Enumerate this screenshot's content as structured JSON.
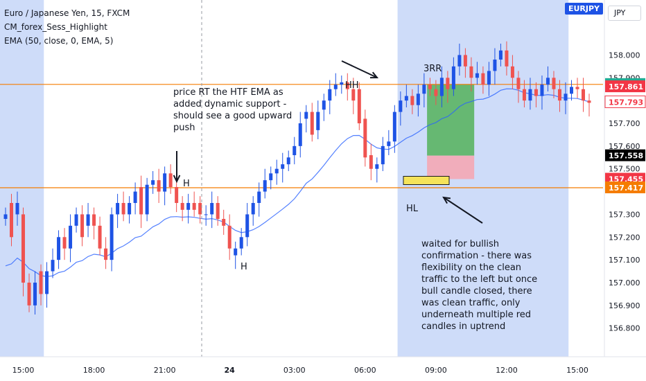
{
  "header": {
    "symbol_line": "Euro / Japanese Yen, 15, FXCM",
    "indicator_1": "CM_forex_Sess_Highlight",
    "indicator_2": "EMA (50, close, 0, EMA, 5)",
    "symbol_badge": "EURJPY",
    "currency": "JPY"
  },
  "annotations": {
    "note_1": "price RT the HTF EMA as\nadded dynamic support -\nshould see a good upward\npush",
    "note_2": "waited for bullish\nconfirmation - there was\nflexibility on the clean\ntraffic to the left but once\nbull candle closed, there\nwas clean traffic, only\nunderneath multiple red\ncandles in uptrend",
    "label_h1": "H",
    "label_h2": "H",
    "label_hh": "HH",
    "label_hl": "HL",
    "label_3rr": "3RR"
  },
  "chart_data": {
    "type": "candlestick",
    "symbol": "EURJPY",
    "timeframe": "15",
    "y_axis": {
      "range": [
        156.72,
        158.12
      ],
      "ticks": [
        158.0,
        157.9,
        157.7,
        157.6,
        157.5,
        157.3,
        157.2,
        157.1,
        157.0,
        156.9,
        156.8
      ],
      "tick_labels": [
        "158.000",
        "157.900",
        "157.700",
        "157.600",
        "157.500",
        "157.300",
        "157.200",
        "157.100",
        "157.000",
        "156.900",
        "156.800"
      ]
    },
    "x_axis": {
      "tick_labels": [
        "15:00",
        "18:00",
        "21:00",
        "24",
        "03:00",
        "06:00",
        "09:00",
        "12:00",
        "15:00"
      ],
      "tick_index": [
        3,
        15,
        27,
        38,
        49,
        61,
        73,
        85,
        97
      ]
    },
    "price_labels": [
      {
        "price": 157.871,
        "text": "157.871",
        "color": "#22ab94"
      },
      {
        "price": 157.861,
        "text": "157.861",
        "color": "#f23645"
      },
      {
        "price": 157.793,
        "text": "157.793",
        "color": "#ffffff",
        "text_color": "#f23645"
      },
      {
        "price": 157.558,
        "text": "157.558",
        "color": "#000000"
      },
      {
        "price": 157.455,
        "text": "157.455",
        "color": "#f23645"
      },
      {
        "price": 157.417,
        "text": "157.417",
        "color": "#f57c00"
      }
    ],
    "horizontal_lines": [
      {
        "price": 157.871,
        "color": "#f57c00"
      },
      {
        "price": 157.417,
        "color": "#f57c00"
      }
    ],
    "sessions": [
      [
        -1,
        6
      ],
      [
        67,
        95
      ]
    ],
    "position": {
      "start_index": 72,
      "end_index": 79,
      "entry": 157.558,
      "target": 157.871,
      "stop": 157.455
    },
    "candles_close": [
      157.3,
      157.2,
      157.35,
      157.0,
      156.9,
      157.0,
      156.95,
      157.05,
      157.1,
      157.2,
      157.15,
      157.25,
      157.3,
      157.2,
      157.3,
      157.25,
      157.15,
      157.1,
      157.3,
      157.35,
      157.3,
      157.35,
      157.4,
      157.3,
      157.43,
      157.45,
      157.4,
      157.48,
      157.42,
      157.35,
      157.32,
      157.35,
      157.32,
      157.3,
      157.3,
      157.35,
      157.28,
      157.25,
      157.15,
      157.15,
      157.2,
      157.3,
      157.35,
      157.4,
      157.45,
      157.48,
      157.5,
      157.52,
      157.55,
      157.6,
      157.7,
      157.75,
      157.65,
      157.75,
      157.8,
      157.85,
      157.87,
      157.88,
      157.85,
      157.8,
      157.7,
      157.55,
      157.5,
      157.52,
      157.6,
      157.62,
      157.75,
      157.8,
      157.82,
      157.78,
      157.83,
      157.87,
      157.85,
      157.82,
      157.9,
      157.85,
      157.95,
      158.0,
      157.95,
      157.9,
      157.92,
      157.87,
      157.93,
      157.98,
      158.02,
      157.95,
      157.9,
      157.85,
      157.8,
      157.85,
      157.82,
      157.87,
      157.9,
      157.85,
      157.8,
      157.83,
      157.86,
      157.85,
      157.8,
      157.79
    ],
    "candles_open": [
      157.28,
      157.35,
      157.3,
      157.3,
      157.0,
      156.9,
      157.05,
      156.95,
      157.05,
      157.1,
      157.2,
      157.15,
      157.25,
      157.3,
      157.25,
      157.3,
      157.25,
      157.15,
      157.1,
      157.3,
      157.35,
      157.3,
      157.35,
      157.42,
      157.3,
      157.43,
      157.45,
      157.4,
      157.48,
      157.42,
      157.35,
      157.32,
      157.35,
      157.35,
      157.3,
      157.3,
      157.35,
      157.28,
      157.25,
      157.12,
      157.15,
      157.2,
      157.3,
      157.35,
      157.4,
      157.45,
      157.48,
      157.5,
      157.52,
      157.56,
      157.6,
      157.72,
      157.75,
      157.67,
      157.76,
      157.8,
      157.85,
      157.87,
      157.88,
      157.85,
      157.85,
      157.72,
      157.56,
      157.5,
      157.52,
      157.6,
      157.62,
      157.75,
      157.8,
      157.82,
      157.78,
      157.83,
      157.87,
      157.85,
      157.82,
      157.9,
      157.85,
      157.95,
      158.0,
      157.95,
      157.9,
      157.92,
      157.87,
      157.93,
      157.98,
      158.02,
      157.95,
      157.9,
      157.85,
      157.8,
      157.85,
      157.82,
      157.87,
      157.9,
      157.85,
      157.8,
      157.83,
      157.86,
      157.85,
      157.8
    ]
  }
}
